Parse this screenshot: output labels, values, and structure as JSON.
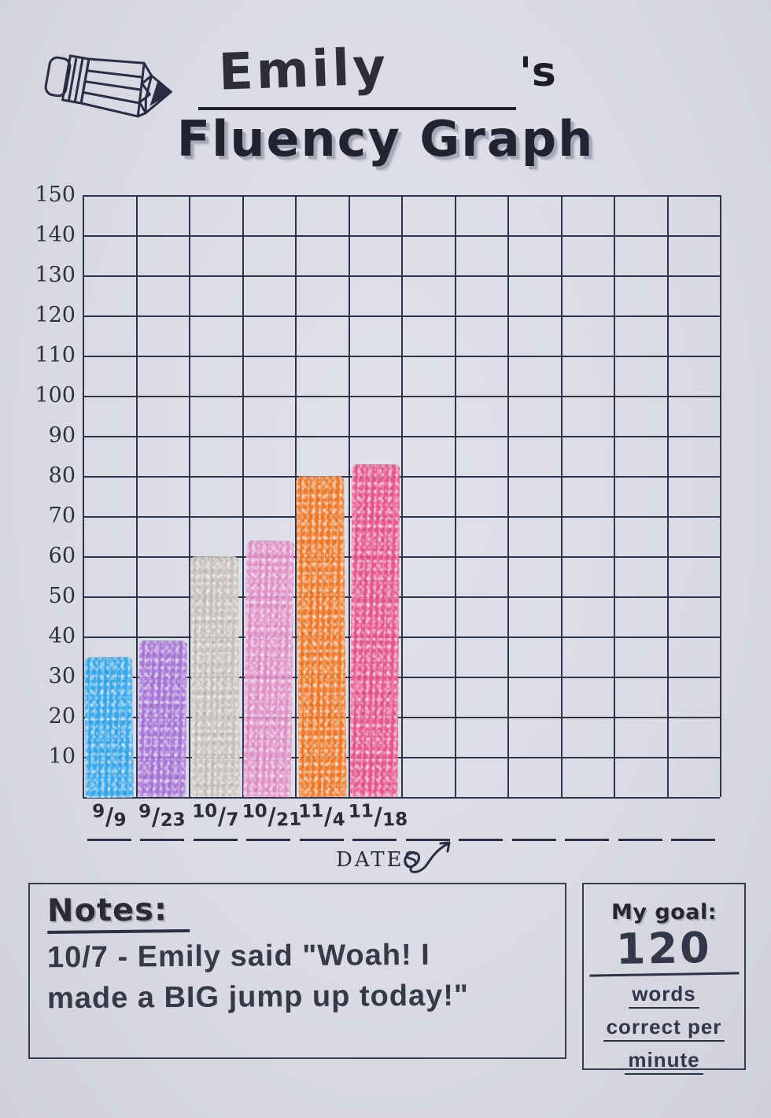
{
  "header": {
    "student_name": "Emily",
    "possessive": "'s",
    "title": "Fluency Graph"
  },
  "chart_data": {
    "type": "bar",
    "title": "Emily's Fluency Graph",
    "xlabel": "DATES",
    "ylabel": "",
    "ylim": [
      0,
      150
    ],
    "ytick_step": 10,
    "y_ticks": [
      150,
      140,
      130,
      120,
      110,
      100,
      90,
      80,
      70,
      60,
      50,
      40,
      30,
      20,
      10
    ],
    "grid": true,
    "total_columns": 12,
    "empty_category_slots": 6,
    "categories": [
      "9/9",
      "9/23",
      "10/7",
      "10/21",
      "11/4",
      "11/18"
    ],
    "values": [
      35,
      39,
      60,
      64,
      80,
      83
    ],
    "bar_colors": [
      "#2da4ea",
      "#a46fd6",
      "#c5c1b8",
      "#e18cc5",
      "#f0741f",
      "#e74e86"
    ],
    "legend": null
  },
  "notes": {
    "heading": "Notes:",
    "lines": [
      "10/7 - Emily said \"Woah! I",
      "made a BIG jump up today!\""
    ]
  },
  "goal": {
    "heading": "My goal:",
    "value": "120",
    "units": [
      "words",
      "correct per",
      "minute"
    ]
  },
  "icons": {
    "pencil": "pencil-icon",
    "dates_arrow": "curly-arrow-icon"
  },
  "colors": {
    "paper": "#dadbe4",
    "grid_line": "#31334a",
    "ink": "#23242e",
    "marker": "#2d2e3a"
  }
}
